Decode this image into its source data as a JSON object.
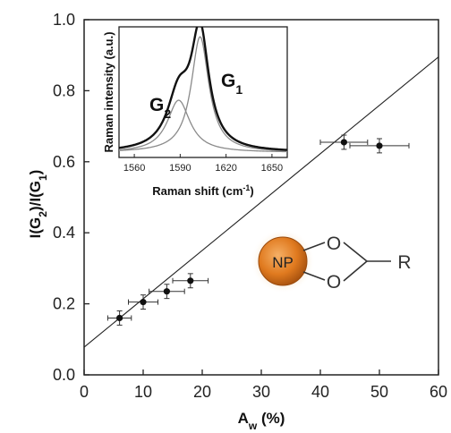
{
  "chart_data": [
    {
      "type": "scatter",
      "title": "",
      "xlabel_main": "A",
      "xlabel_sub": "w",
      "xlabel_tail": " (%)",
      "ylabel": "I(G2)/I(G1)",
      "xlim": [
        0,
        60
      ],
      "ylim": [
        0.0,
        1.0
      ],
      "xticks": [
        "0",
        "10",
        "20",
        "30",
        "40",
        "50",
        "60"
      ],
      "yticks": [
        "0.0",
        "0.2",
        "0.4",
        "0.6",
        "0.8",
        "1.0"
      ],
      "points": [
        {
          "x": 6,
          "y": 0.16,
          "xerr": 2,
          "yerr": 0.02
        },
        {
          "x": 10,
          "y": 0.205,
          "xerr": 2.5,
          "yerr": 0.02
        },
        {
          "x": 14,
          "y": 0.235,
          "xerr": 3,
          "yerr": 0.02
        },
        {
          "x": 18,
          "y": 0.265,
          "xerr": 3,
          "yerr": 0.02
        },
        {
          "x": 44,
          "y": 0.655,
          "xerr": 4,
          "yerr": 0.02
        },
        {
          "x": 50,
          "y": 0.645,
          "xerr": 5,
          "yerr": 0.02
        }
      ],
      "fit_line": {
        "x": [
          0,
          60
        ],
        "y": [
          0.078,
          0.895
        ]
      }
    },
    {
      "type": "line",
      "title": "",
      "xlabel": "Raman shift (cm",
      "xlabel_sup": "-1",
      "xlabel_tail": ")",
      "ylabel": "Raman intensity (a.u.)",
      "xlim": [
        1550,
        1660
      ],
      "ylim": [
        0,
        1.05
      ],
      "xticks": [
        "1560",
        "1590",
        "1620",
        "1650"
      ],
      "xtick_values": [
        1560,
        1590,
        1620,
        1650
      ],
      "peaks": [
        {
          "label_main": "G",
          "label_sub": "1",
          "center": 1603,
          "width": 7,
          "height": 0.93
        },
        {
          "label_main": "G",
          "label_sub": "2",
          "center": 1589,
          "width": 9,
          "height": 0.42
        }
      ],
      "baseline": 0.04
    }
  ],
  "structure": {
    "np_label": "NP",
    "o_top": "O",
    "o_bottom": "O",
    "r_label": "R"
  },
  "colors": {
    "np_core": "#e07a1f",
    "np_edge": "#9a4a0c",
    "np_glow": "#f6d6ad",
    "fit": "#222222",
    "points": "#111111",
    "sum_curve": "#111111",
    "component": "#8a8a8a"
  }
}
